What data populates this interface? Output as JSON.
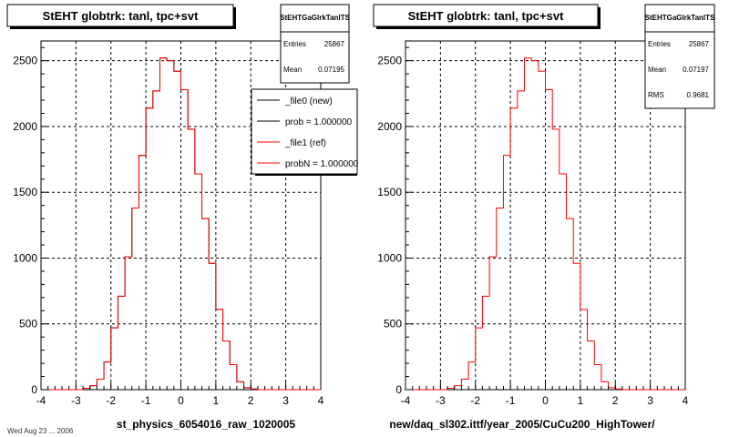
{
  "footer": "Wed Aug 23 ... 2006",
  "chart_data": [
    {
      "type": "bar",
      "title": "StEHT globtrk: tanl, tpc+svt",
      "xlabel": "st_physics_6054016_raw_1020005",
      "xlim": [
        -4,
        4
      ],
      "ylim": [
        0,
        2650
      ],
      "x_ticks": [
        "-4",
        "-3",
        "-2",
        "-1",
        "0",
        "1",
        "2",
        "3",
        "4"
      ],
      "y_ticks": [
        "0",
        "500",
        "1000",
        "1500",
        "2000",
        "2500"
      ],
      "grid": true,
      "stats": {
        "name": "StEHTGaGlrkTanlTS",
        "rows": [
          {
            "label": "Entries",
            "value": "25867"
          },
          {
            "label": "Mean",
            "value": "0.07195"
          }
        ]
      },
      "legend": {
        "placement": "top-right",
        "entries": [
          {
            "label": "_file0 (new)",
            "color": "#000000"
          },
          {
            "label": "prob = 1.000000",
            "color": "#000000"
          },
          {
            "label": "_file1 (ref)",
            "color": "#ff0000"
          },
          {
            "label": "probN = 1.000000",
            "color": "#ff0000"
          }
        ]
      },
      "bin_edges": [
        -4.0,
        -3.8,
        -3.6,
        -3.4,
        -3.2,
        -3.0,
        -2.8,
        -2.6,
        -2.4,
        -2.2,
        -2.0,
        -1.8,
        -1.6,
        -1.4,
        -1.2,
        -1.0,
        -0.8,
        -0.6,
        -0.4,
        -0.2,
        0.0,
        0.2,
        0.4,
        0.6,
        0.8,
        1.0,
        1.2,
        1.4,
        1.6,
        1.8,
        2.0,
        2.2,
        2.4,
        2.6,
        2.8,
        3.0,
        3.2,
        3.4,
        3.6,
        3.8,
        4.0
      ],
      "series": [
        {
          "name": "_file0 (new)",
          "color": "#000000",
          "values": [
            0,
            0,
            0,
            0,
            0,
            0,
            10,
            30,
            80,
            210,
            470,
            710,
            1010,
            1380,
            1780,
            2140,
            2270,
            2520,
            2500,
            2420,
            2280,
            1980,
            1640,
            1300,
            960,
            610,
            370,
            190,
            60,
            15,
            5,
            0,
            0,
            0,
            0,
            0,
            0,
            0,
            0,
            0
          ]
        },
        {
          "name": "_file1 (ref)",
          "color": "#ff0000",
          "values": [
            0,
            0,
            0,
            0,
            0,
            0,
            10,
            30,
            80,
            210,
            470,
            710,
            1010,
            1380,
            1780,
            2140,
            2270,
            2520,
            2500,
            2420,
            2280,
            1980,
            1640,
            1300,
            960,
            610,
            370,
            190,
            60,
            15,
            5,
            0,
            0,
            0,
            0,
            0,
            0,
            0,
            0,
            0
          ]
        }
      ]
    },
    {
      "type": "bar",
      "title": "StEHT globtrk: tanl, tpc+svt",
      "xlabel": "new/daq_sl302.ittf/year_2005/CuCu200_HighTower/",
      "xlim": [
        -4,
        4
      ],
      "ylim": [
        0,
        2650
      ],
      "x_ticks": [
        "-4",
        "-3",
        "-2",
        "-1",
        "0",
        "1",
        "2",
        "3",
        "4"
      ],
      "y_ticks": [
        "0",
        "500",
        "1000",
        "1500",
        "2000",
        "2500"
      ],
      "grid": true,
      "stats": {
        "name": "StEHTGaGlrkTanlTS",
        "rows": [
          {
            "label": "Entries",
            "value": "25867"
          },
          {
            "label": "Mean",
            "value": "0.07197"
          },
          {
            "label": "RMS",
            "value": "0.9681"
          }
        ]
      },
      "bin_edges": [
        -4.0,
        -3.8,
        -3.6,
        -3.4,
        -3.2,
        -3.0,
        -2.8,
        -2.6,
        -2.4,
        -2.2,
        -2.0,
        -1.8,
        -1.6,
        -1.4,
        -1.2,
        -1.0,
        -0.8,
        -0.6,
        -0.4,
        -0.2,
        0.0,
        0.2,
        0.4,
        0.6,
        0.8,
        1.0,
        1.2,
        1.4,
        1.6,
        1.8,
        2.0,
        2.2,
        2.4,
        2.6,
        2.8,
        3.0,
        3.2,
        3.4,
        3.6,
        3.8,
        4.0
      ],
      "series": [
        {
          "name": "",
          "color": "#ff0000",
          "values": [
            0,
            0,
            0,
            0,
            0,
            0,
            10,
            30,
            80,
            210,
            470,
            710,
            1010,
            1380,
            1780,
            2140,
            2270,
            2520,
            2500,
            2420,
            2280,
            1980,
            1640,
            1300,
            960,
            610,
            370,
            190,
            60,
            15,
            5,
            0,
            0,
            0,
            0,
            0,
            0,
            0,
            0,
            0
          ]
        }
      ]
    }
  ]
}
